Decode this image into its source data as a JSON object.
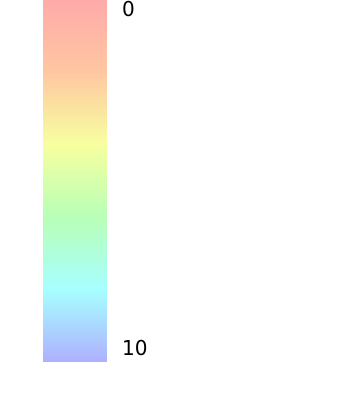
{
  "chart_data": {
    "type": "heatmap",
    "colorbar": {
      "min": 0,
      "max": 10,
      "orientation": "vertical",
      "direction": "top-to-bottom",
      "ticks": [
        "0",
        "10"
      ],
      "colors": [
        "#ffaaaa",
        "#ffc7a1",
        "#f7ff9f",
        "#b8ffb7",
        "#a7ffff",
        "#aeb0ff"
      ]
    }
  }
}
